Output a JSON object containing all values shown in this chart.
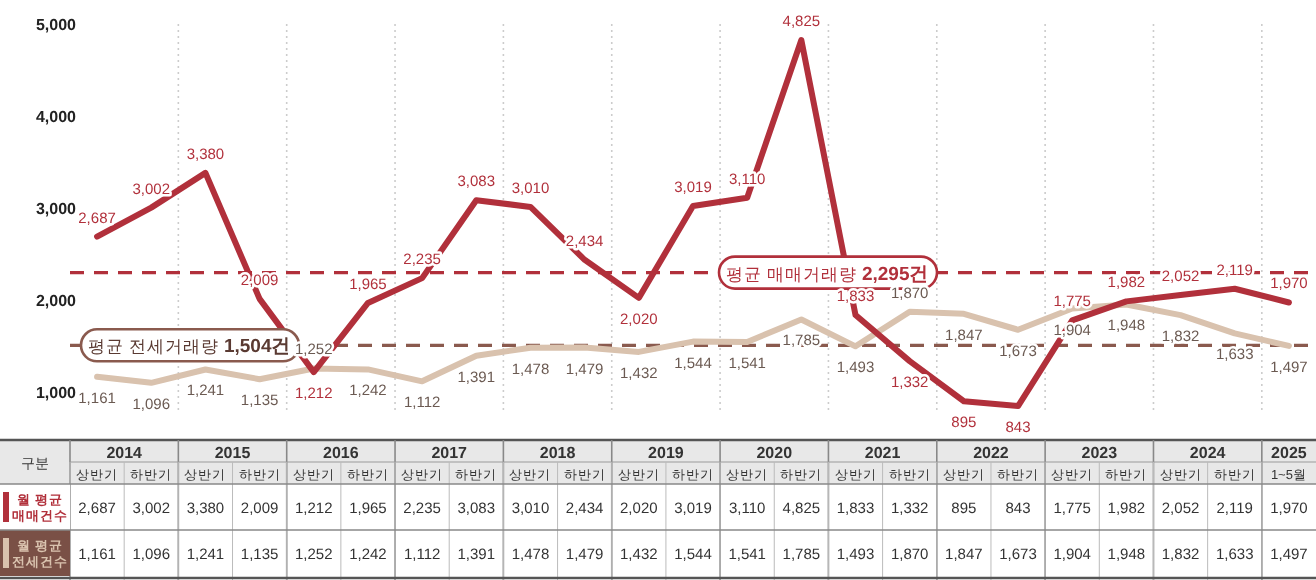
{
  "chart_data": {
    "type": "line",
    "categories": [
      "상반기",
      "하반기",
      "상반기",
      "하반기",
      "상반기",
      "하반기",
      "상반기",
      "하반기",
      "상반기",
      "하반기",
      "상반기",
      "하반기",
      "상반기",
      "하반기",
      "상반기",
      "하반기",
      "상반기",
      "하반기",
      "상반기",
      "하반기",
      "상반기",
      "하반기",
      "1~5월"
    ],
    "annotations": [
      "구분",
      "2014",
      "2015",
      "2016",
      "2017",
      "2018",
      "2019",
      "2020",
      "2021",
      "2022",
      "2023",
      "2024",
      "2025"
    ],
    "series": [
      {
        "name": "월 평균 매매건수",
        "color": "#b1303b",
        "values": [
          2687,
          3002,
          3380,
          2009,
          1212,
          1965,
          2235,
          3083,
          3010,
          2434,
          2020,
          3019,
          3110,
          4825,
          1833,
          1332,
          895,
          843,
          1775,
          1982,
          2052,
          2119,
          1970
        ],
        "value_labels": [
          "2,687",
          "3,002",
          "3,380",
          "2,009",
          "1,212",
          "1,965",
          "2,235",
          "3,083",
          "3,010",
          "2,434",
          "2,020",
          "3,019",
          "3,110",
          "4,825",
          "1,833",
          "1,332",
          "895",
          "843",
          "1,775",
          "1,982",
          "2,052",
          "2,119",
          "1,970"
        ]
      },
      {
        "name": "월 평균 전세건수",
        "color": "#d9c2ae",
        "values": [
          1161,
          1096,
          1241,
          1135,
          1252,
          1242,
          1112,
          1391,
          1478,
          1479,
          1432,
          1544,
          1541,
          1785,
          1493,
          1870,
          1847,
          1673,
          1904,
          1948,
          1832,
          1633,
          1497
        ],
        "value_labels": [
          "1,161",
          "1,096",
          "1,241",
          "1,135",
          "1,252",
          "1,242",
          "1,112",
          "1,391",
          "1,478",
          "1,479",
          "1,432",
          "1,544",
          "1,541",
          "1,785",
          "1,493",
          "1,870",
          "1,847",
          "1,673",
          "1,904",
          "1,948",
          "1,832",
          "1,633",
          "1,497"
        ]
      }
    ],
    "ylim": [
      800,
      5000
    ],
    "yticks": [
      {
        "value": 1000,
        "label": "1,000"
      },
      {
        "value": 2000,
        "label": "2,000"
      },
      {
        "value": 3000,
        "label": "3,000"
      },
      {
        "value": 4000,
        "label": "4,000"
      },
      {
        "value": 5000,
        "label": "5,000"
      }
    ],
    "ref_lines": [
      {
        "axis": "y",
        "value": 2295,
        "label": "평균 매매거래량 2,295건",
        "color": "#b1303b",
        "line_style": "dashed"
      },
      {
        "axis": "y",
        "value": 1504,
        "label": "평균 전세거래량 1,504건",
        "color": "#8a5a4e",
        "line_style": "dashed"
      }
    ],
    "grid": "x",
    "legend": "bottom left",
    "marker": "none",
    "line_style": "solid"
  }
}
